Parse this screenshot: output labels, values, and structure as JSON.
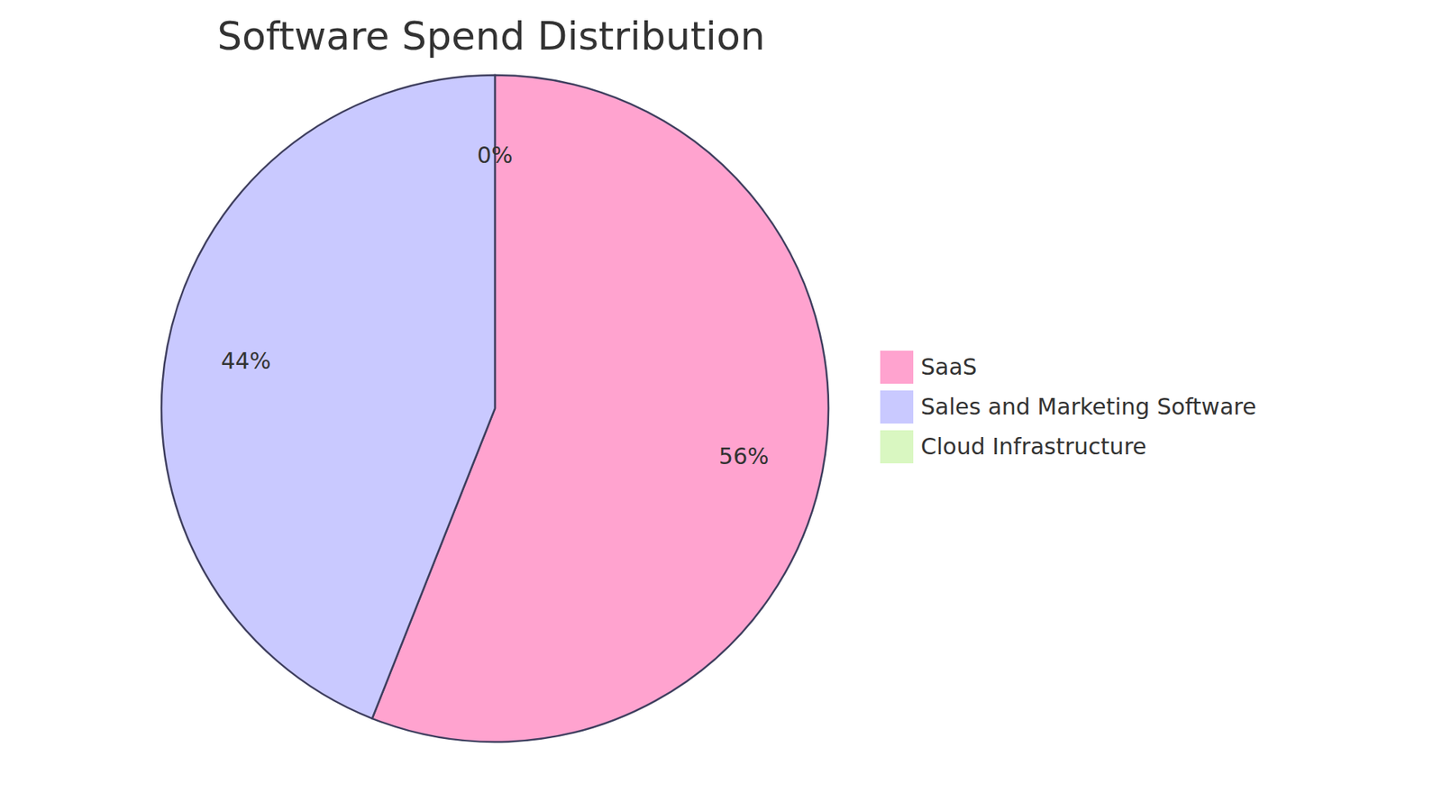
{
  "chart_data": {
    "type": "pie",
    "title": "Software Spend Distribution",
    "categories": [
      "SaaS",
      "Sales and Marketing Software",
      "Cloud Infrastructure"
    ],
    "values": [
      56,
      44,
      0
    ],
    "value_labels": [
      "56%",
      "44%",
      "0%"
    ],
    "colors": [
      "#ffa3cf",
      "#c9c9ff",
      "#d9f7c1"
    ],
    "data_labels": true,
    "legend": "right"
  }
}
